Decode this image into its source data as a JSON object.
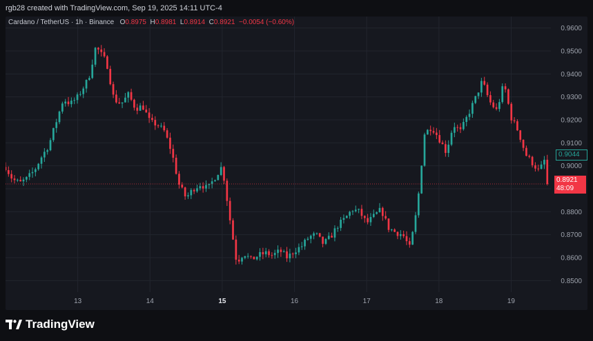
{
  "header": {
    "attribution": "rgb28 created with TradingView.com, Sep 19, 2025 14:11 UTC-4"
  },
  "legend": {
    "symbol": "Cardano / TetherUS · 1h · Binance",
    "o_label": "O",
    "o_value": "0.8975",
    "h_label": "H",
    "h_value": "0.8981",
    "l_label": "L",
    "l_value": "0.8914",
    "c_label": "C",
    "c_value": "0.8921",
    "change": "−0.0054 (−0.60%)"
  },
  "price_tags": {
    "green_value": "0.9044",
    "red_value": "0.8921",
    "red_countdown": "48:09"
  },
  "footer": {
    "logo_text": "TradingView"
  },
  "colors": {
    "up": "#26a69a",
    "down": "#f23645",
    "background": "#16181f",
    "page": "#0e0f13"
  },
  "chart_data": {
    "type": "candlestick",
    "ylim": [
      0.845,
      0.965
    ],
    "y_ticks": [
      "0.9600",
      "0.9500",
      "0.9400",
      "0.9300",
      "0.9200",
      "0.9100",
      "0.9000",
      "0.8900",
      "0.8800",
      "0.8700",
      "0.8600",
      "0.8500"
    ],
    "x_ticks": [
      "13",
      "14",
      "15",
      "16",
      "17",
      "18",
      "19"
    ],
    "x_tick_bold": [
      false,
      false,
      true,
      false,
      false,
      false,
      false
    ],
    "current_price": 0.8921,
    "close_path": [
      [
        12.0,
        0.8995
      ],
      [
        12.1,
        0.894
      ],
      [
        12.2,
        0.8925
      ],
      [
        12.3,
        0.8945
      ],
      [
        12.4,
        0.898
      ],
      [
        12.5,
        0.904
      ],
      [
        12.6,
        0.909
      ],
      [
        12.7,
        0.919
      ],
      [
        12.8,
        0.929
      ],
      [
        12.9,
        0.927
      ],
      [
        13.0,
        0.93
      ],
      [
        13.15,
        0.938
      ],
      [
        13.25,
        0.952
      ],
      [
        13.4,
        0.945
      ],
      [
        13.5,
        0.929
      ],
      [
        13.6,
        0.927
      ],
      [
        13.7,
        0.931
      ],
      [
        13.8,
        0.925
      ],
      [
        13.9,
        0.926
      ],
      [
        14.0,
        0.919
      ],
      [
        14.1,
        0.918
      ],
      [
        14.2,
        0.915
      ],
      [
        14.3,
        0.906
      ],
      [
        14.4,
        0.892
      ],
      [
        14.5,
        0.886
      ],
      [
        14.6,
        0.89
      ],
      [
        14.7,
        0.892
      ],
      [
        14.8,
        0.89
      ],
      [
        14.9,
        0.895
      ],
      [
        15.0,
        0.9
      ],
      [
        15.1,
        0.878
      ],
      [
        15.2,
        0.858
      ],
      [
        15.3,
        0.862
      ],
      [
        15.4,
        0.859
      ],
      [
        15.5,
        0.861
      ],
      [
        15.6,
        0.862
      ],
      [
        15.7,
        0.861
      ],
      [
        15.8,
        0.863
      ],
      [
        15.9,
        0.86
      ],
      [
        16.0,
        0.863
      ],
      [
        16.1,
        0.865
      ],
      [
        16.2,
        0.869
      ],
      [
        16.3,
        0.87
      ],
      [
        16.4,
        0.866
      ],
      [
        16.5,
        0.869
      ],
      [
        16.6,
        0.874
      ],
      [
        16.7,
        0.877
      ],
      [
        16.8,
        0.881
      ],
      [
        16.9,
        0.88
      ],
      [
        17.0,
        0.875
      ],
      [
        17.1,
        0.878
      ],
      [
        17.2,
        0.881
      ],
      [
        17.3,
        0.873
      ],
      [
        17.4,
        0.871
      ],
      [
        17.5,
        0.87
      ],
      [
        17.6,
        0.864
      ],
      [
        17.7,
        0.882
      ],
      [
        17.8,
        0.914
      ],
      [
        17.9,
        0.917
      ],
      [
        18.0,
        0.912
      ],
      [
        18.1,
        0.906
      ],
      [
        18.2,
        0.918
      ],
      [
        18.3,
        0.915
      ],
      [
        18.4,
        0.922
      ],
      [
        18.5,
        0.929
      ],
      [
        18.6,
        0.937
      ],
      [
        18.7,
        0.928
      ],
      [
        18.8,
        0.924
      ],
      [
        18.9,
        0.936
      ],
      [
        19.0,
        0.921
      ],
      [
        19.1,
        0.915
      ],
      [
        19.2,
        0.905
      ],
      [
        19.3,
        0.901
      ],
      [
        19.4,
        0.897
      ],
      [
        19.45,
        0.9044
      ],
      [
        19.5,
        0.8921
      ]
    ]
  }
}
